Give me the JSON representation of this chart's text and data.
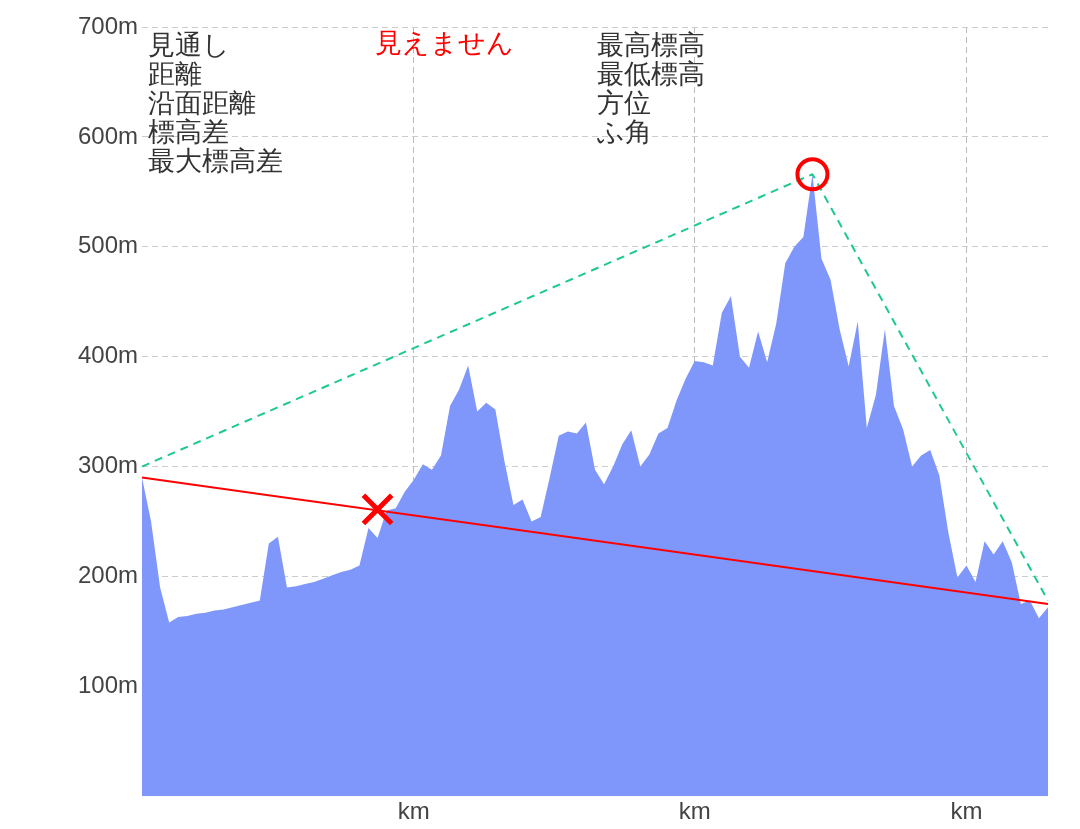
{
  "chart_data": {
    "type": "area",
    "annotations": [
      "見通し",
      "距離",
      "沿面距離",
      "標高差",
      "最大標高差",
      "見えません",
      "最高標高",
      "最低標高",
      "方位",
      "ふ角"
    ],
    "categories": [
      null,
      null,
      null,
      null,
      null,
      null,
      null,
      null,
      null,
      null,
      null,
      null,
      null,
      null,
      null,
      null,
      null,
      null,
      null,
      null,
      null,
      null,
      null,
      null,
      null,
      null,
      null,
      null,
      null,
      null,
      "km",
      null,
      null,
      null,
      null,
      null,
      null,
      null,
      null,
      null,
      null,
      null,
      null,
      null,
      null,
      null,
      null,
      null,
      null,
      null,
      null,
      null,
      null,
      null,
      null,
      null,
      null,
      null,
      null,
      null,
      null,
      "km",
      null,
      null,
      null,
      null,
      null,
      null,
      null,
      null,
      null,
      null,
      null,
      null,
      null,
      null,
      null,
      null,
      null,
      null,
      null,
      null,
      null,
      null,
      null,
      null,
      null,
      null,
      null,
      null,
      null,
      "km",
      null,
      null,
      null,
      null,
      null,
      null,
      null,
      null,
      null
    ],
    "ylim": [
      0,
      700
    ],
    "yticks": [
      {
        "value": 100,
        "label": "100m"
      },
      {
        "value": 200,
        "label": "200m"
      },
      {
        "value": 300,
        "label": "300m"
      },
      {
        "value": 400,
        "label": "400m"
      },
      {
        "value": 500,
        "label": "500m"
      },
      {
        "value": 600,
        "label": "600m"
      },
      {
        "value": 700,
        "label": "700m"
      }
    ],
    "grid": true,
    "series": [
      {
        "color": "#7f97fa",
        "values": [
          290,
          250,
          190,
          158,
          163,
          164,
          166,
          167,
          169,
          170,
          172,
          174,
          176,
          178,
          230,
          236,
          190,
          191,
          193,
          195,
          198,
          201,
          204,
          206,
          210,
          244,
          235,
          260,
          262,
          277,
          288,
          302,
          297,
          310,
          355,
          370,
          392,
          350,
          358,
          352,
          305,
          265,
          270,
          250,
          254,
          290,
          328,
          332,
          330,
          340,
          297,
          284,
          300,
          320,
          333,
          300,
          311,
          330,
          335,
          360,
          380,
          396,
          395,
          392,
          440,
          455,
          400,
          390,
          423,
          395,
          430,
          485,
          500,
          509,
          566,
          489,
          470,
          425,
          391,
          432,
          335,
          365,
          425,
          355,
          334,
          300,
          310,
          315,
          292,
          240,
          199,
          210,
          195,
          232,
          220,
          232,
          213,
          175,
          178,
          162,
          172
        ]
      },
      {
        "type": "line",
        "color": "#ff0000",
        "line_style": "solid",
        "values": [
          290,
          null,
          null,
          null,
          null,
          null,
          null,
          null,
          null,
          null,
          null,
          null,
          null,
          null,
          null,
          null,
          null,
          null,
          null,
          null,
          null,
          null,
          null,
          null,
          null,
          null,
          null,
          null,
          null,
          null,
          null,
          null,
          null,
          null,
          null,
          null,
          null,
          null,
          null,
          null,
          null,
          null,
          null,
          null,
          null,
          null,
          null,
          null,
          null,
          null,
          null,
          null,
          null,
          null,
          null,
          null,
          null,
          null,
          null,
          null,
          null,
          null,
          null,
          null,
          null,
          null,
          null,
          null,
          null,
          null,
          null,
          null,
          null,
          null,
          null,
          null,
          null,
          null,
          null,
          null,
          null,
          null,
          null,
          null,
          null,
          null,
          null,
          null,
          null,
          null,
          null,
          null,
          null,
          null,
          null,
          null,
          null,
          null,
          null,
          null,
          175
        ]
      },
      {
        "type": "line",
        "color": "#1ec98e",
        "line_style": "dashed",
        "values": [
          300,
          null,
          null,
          null,
          null,
          null,
          null,
          null,
          null,
          null,
          null,
          null,
          null,
          null,
          null,
          null,
          null,
          null,
          null,
          null,
          null,
          null,
          null,
          null,
          null,
          null,
          null,
          null,
          null,
          null,
          null,
          null,
          null,
          null,
          null,
          null,
          null,
          null,
          null,
          null,
          null,
          null,
          null,
          null,
          null,
          null,
          null,
          null,
          null,
          null,
          null,
          null,
          null,
          null,
          null,
          null,
          null,
          null,
          null,
          null,
          null,
          null,
          null,
          null,
          null,
          null,
          null,
          null,
          null,
          null,
          null,
          null,
          null,
          null,
          566,
          null,
          null,
          null,
          null,
          null,
          null,
          null,
          null,
          null,
          null,
          null,
          null,
          null,
          null,
          null,
          null,
          null,
          null,
          null,
          null,
          null,
          null,
          null,
          null,
          null,
          178
        ]
      },
      {
        "type": "scatter",
        "color": "#ff0000",
        "marker": "circle",
        "values": [
          null,
          null,
          null,
          null,
          null,
          null,
          null,
          null,
          null,
          null,
          null,
          null,
          null,
          null,
          null,
          null,
          null,
          null,
          null,
          null,
          null,
          null,
          null,
          null,
          null,
          null,
          null,
          null,
          null,
          null,
          null,
          null,
          null,
          null,
          null,
          null,
          null,
          null,
          null,
          null,
          null,
          null,
          null,
          null,
          null,
          null,
          null,
          null,
          null,
          null,
          null,
          null,
          null,
          null,
          null,
          null,
          null,
          null,
          null,
          null,
          null,
          null,
          null,
          null,
          null,
          null,
          null,
          null,
          null,
          null,
          null,
          null,
          null,
          null,
          566,
          null,
          null,
          null,
          null,
          null,
          null,
          null,
          null,
          null,
          null,
          null,
          null,
          null,
          null,
          null,
          null,
          null,
          null,
          null,
          null,
          null,
          null,
          null,
          null,
          null,
          null
        ]
      },
      {
        "type": "scatter",
        "color": "#ff0000",
        "marker": "cross",
        "values": [
          null,
          null,
          null,
          null,
          null,
          null,
          null,
          null,
          null,
          null,
          null,
          null,
          null,
          null,
          null,
          null,
          null,
          null,
          null,
          null,
          null,
          null,
          null,
          null,
          null,
          null,
          261,
          null,
          null,
          null,
          null,
          null,
          null,
          null,
          null,
          null,
          null,
          null,
          null,
          null,
          null,
          null,
          null,
          null,
          null,
          null,
          null,
          null,
          null,
          null,
          null,
          null,
          null,
          null,
          null,
          null,
          null,
          null,
          null,
          null,
          null,
          null,
          null,
          null,
          null,
          null,
          null,
          null,
          null,
          null,
          null,
          null,
          null,
          null,
          null,
          null,
          null,
          null,
          null,
          null,
          null,
          null,
          null,
          null,
          null,
          null,
          null,
          null,
          null,
          null,
          null,
          null,
          null,
          null,
          null,
          null,
          null,
          null,
          null,
          null,
          null
        ]
      }
    ]
  }
}
